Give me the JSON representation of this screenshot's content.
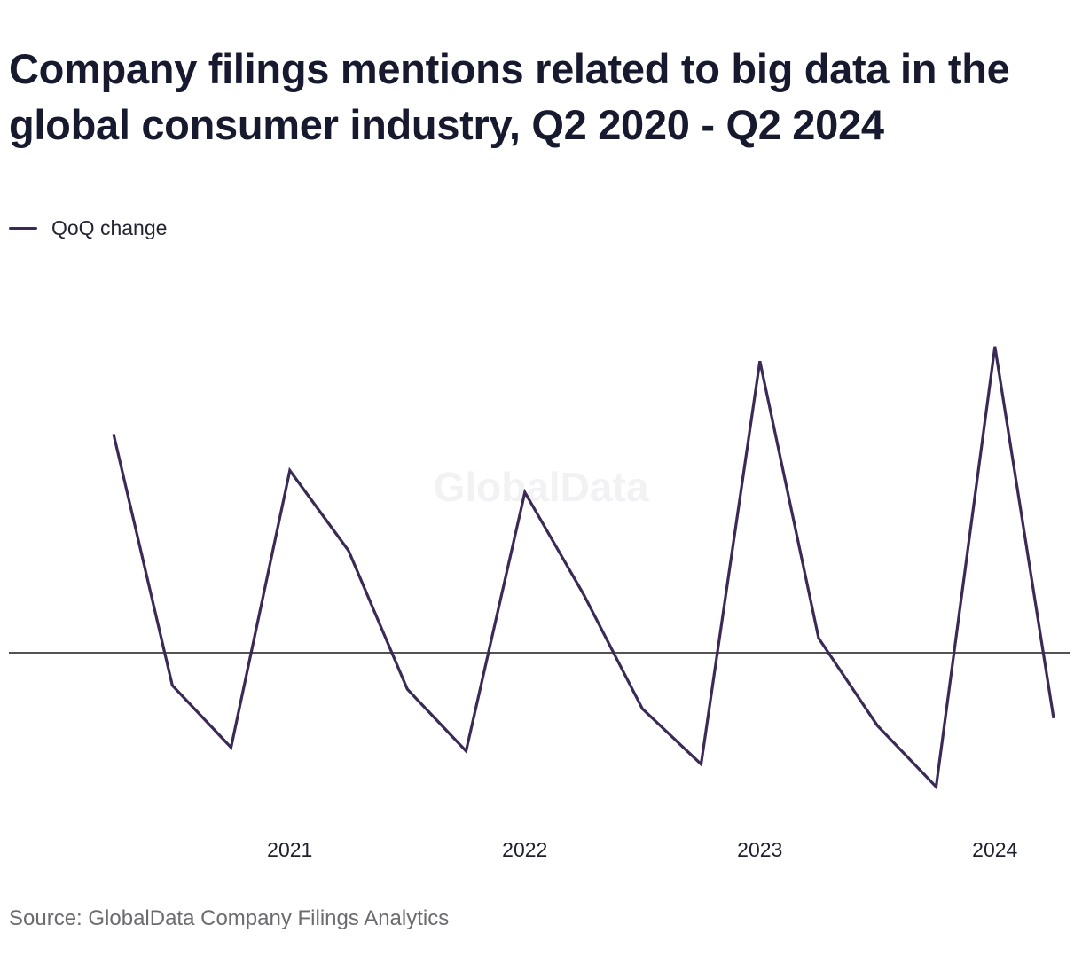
{
  "header": {
    "title": "Company filings mentions related to big data in the global consumer industry, Q2 2020 - Q2 2024"
  },
  "legend": {
    "label": "QoQ change",
    "color": "#3a2a55"
  },
  "watermark": "GlobalData",
  "source": "Source: GlobalData Company Filings Analytics",
  "chart_data": {
    "type": "line",
    "title": "Company filings mentions related to big data in the global consumer industry, Q2 2020 - Q2 2024",
    "xlabel": "",
    "ylabel": "",
    "x": [
      "Q2 2020",
      "Q3 2020",
      "Q4 2020",
      "Q1 2021",
      "Q2 2021",
      "Q3 2021",
      "Q4 2021",
      "Q1 2022",
      "Q2 2022",
      "Q3 2022",
      "Q4 2022",
      "Q1 2023",
      "Q2 2023",
      "Q3 2023",
      "Q4 2023",
      "Q1 2024",
      "Q2 2024"
    ],
    "x_ticks": [
      {
        "label": "2021",
        "at": "Q1 2021"
      },
      {
        "label": "2022",
        "at": "Q1 2022"
      },
      {
        "label": "2023",
        "at": "Q1 2023"
      },
      {
        "label": "2024",
        "at": "Q1 2024"
      }
    ],
    "series": [
      {
        "name": "QoQ change",
        "color": "#3a2a55",
        "values": [
          30,
          -4.5,
          -13,
          25,
          14,
          -5,
          -13.5,
          22,
          8,
          -7.7,
          -15.3,
          40,
          2,
          -10,
          -18.4,
          42,
          -9
        ]
      }
    ],
    "ylim": [
      -23,
      50
    ],
    "zero_line": true,
    "grid": false,
    "legend_position": "top-left"
  }
}
